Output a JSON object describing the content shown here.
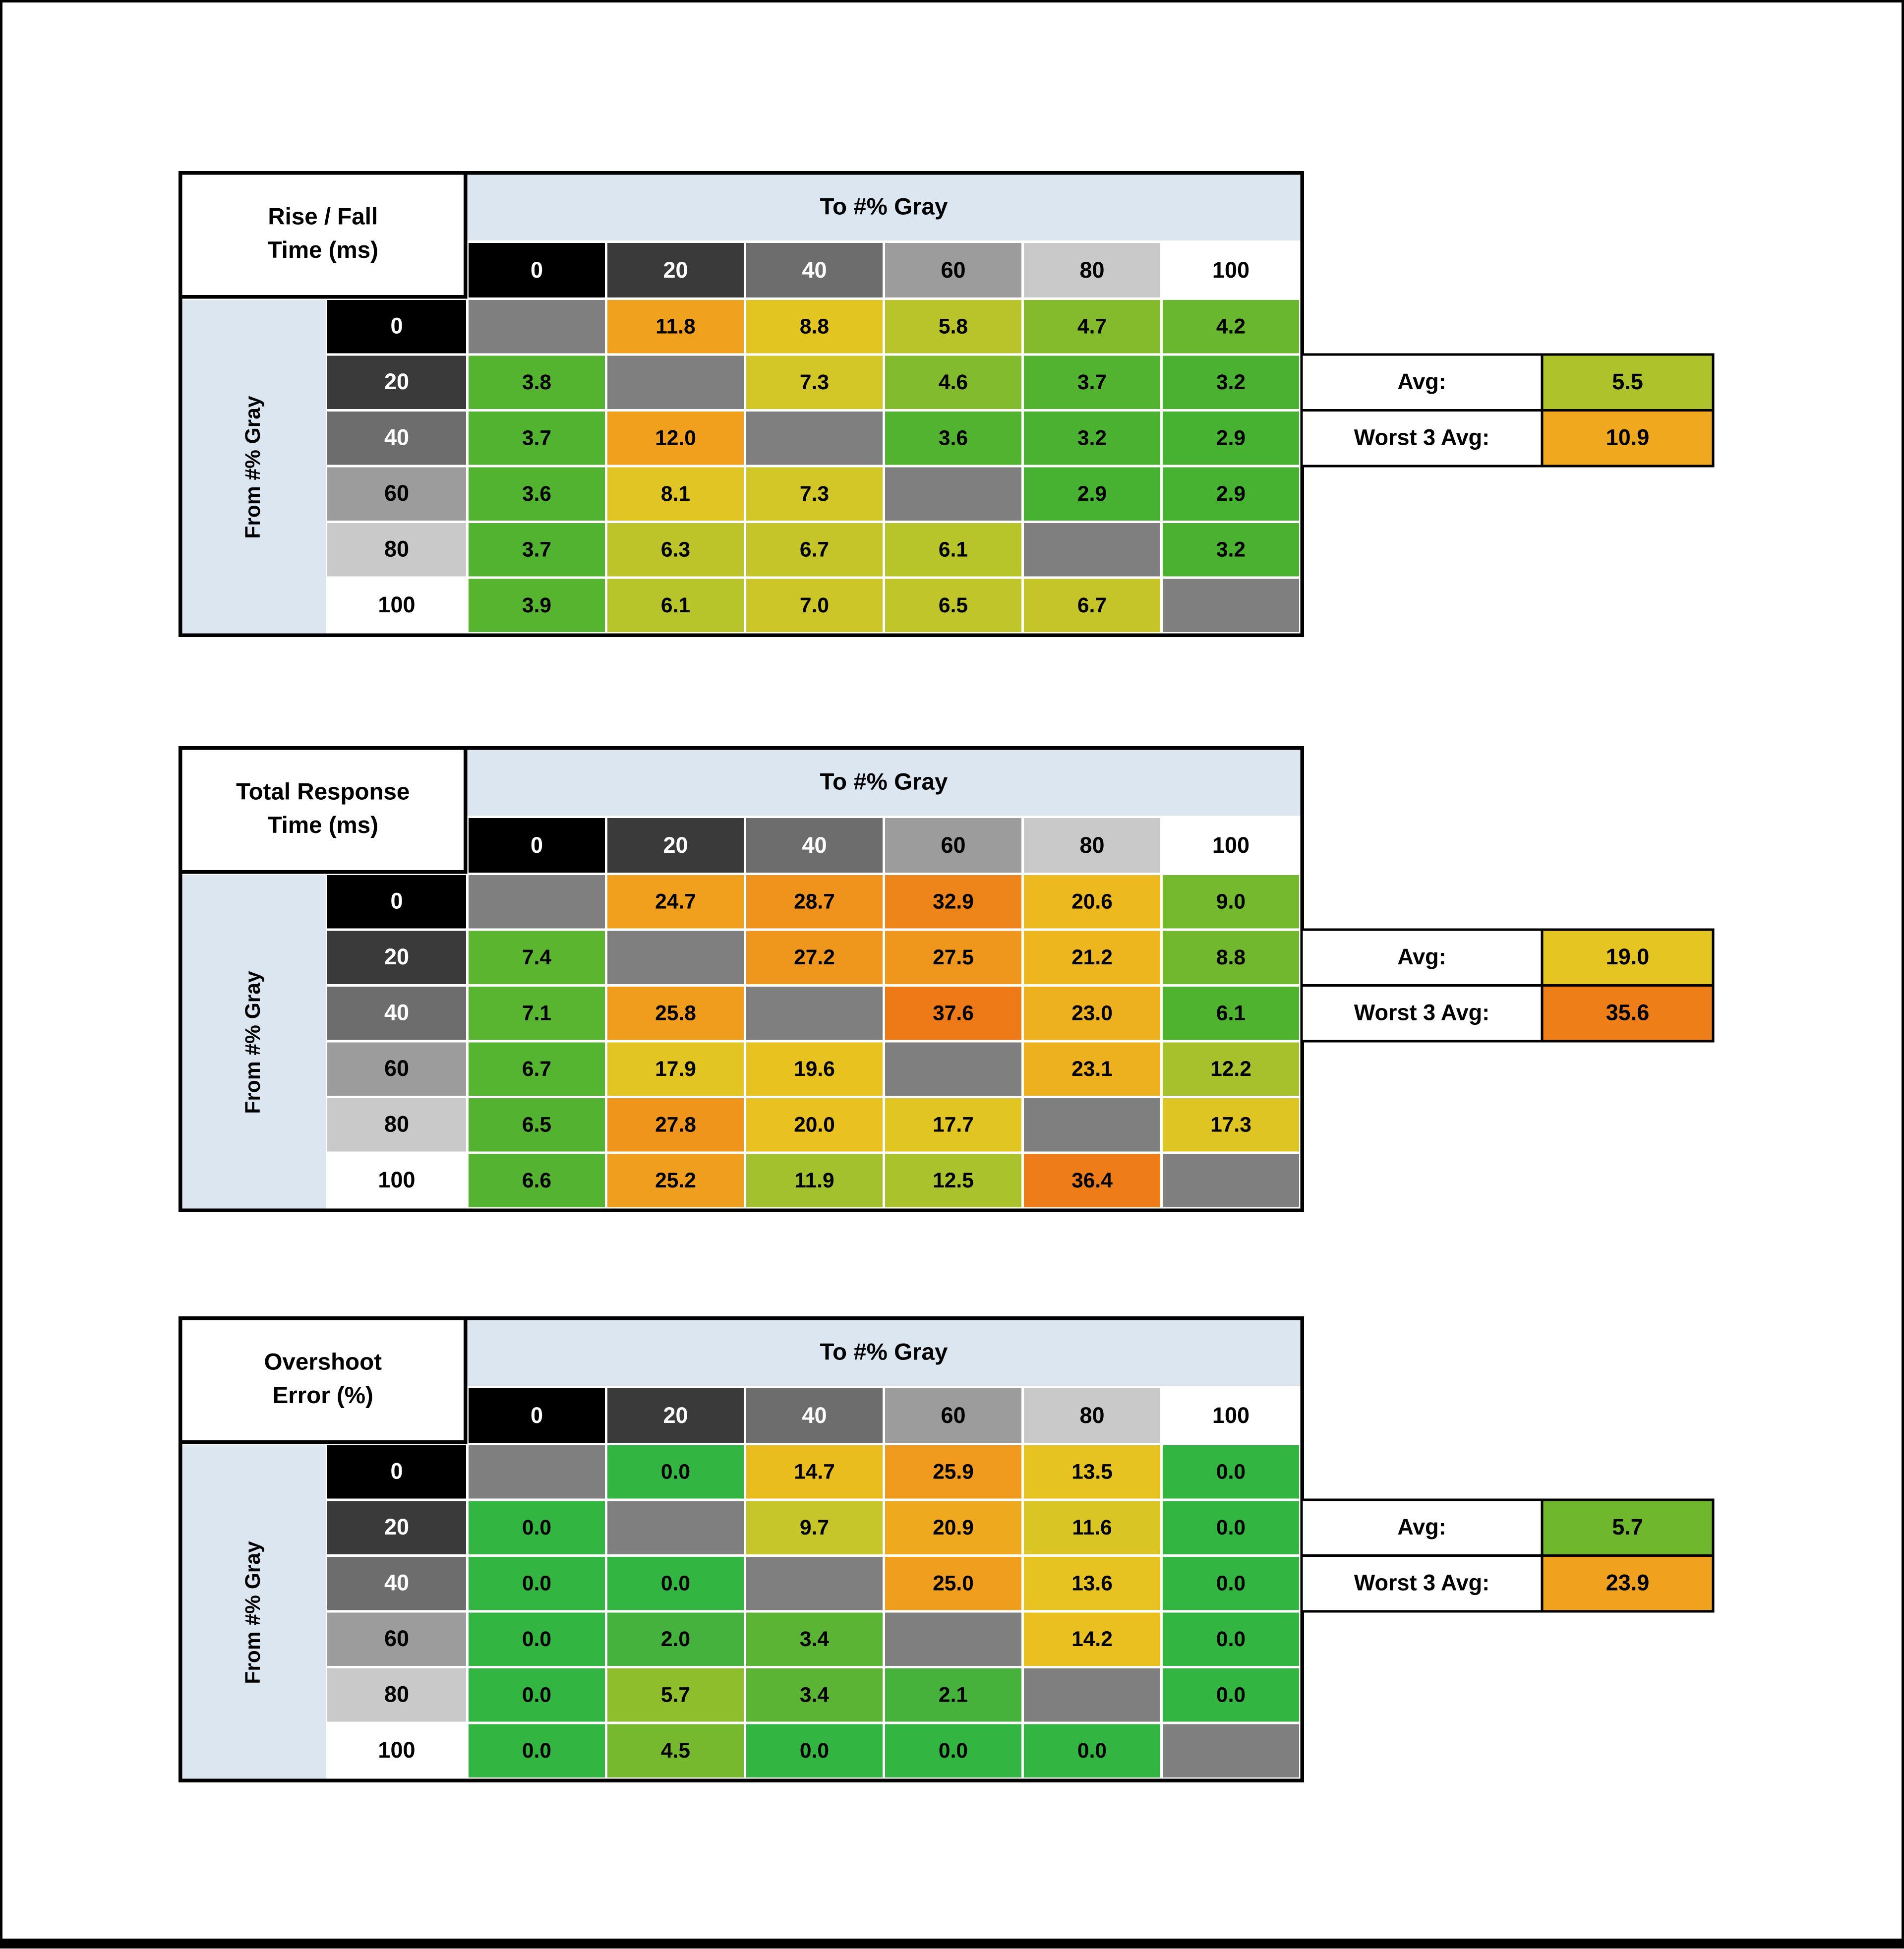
{
  "page": {
    "background": "#ffffff",
    "border_color": "#000000",
    "band_color": "#dce6f1",
    "diagonal_color": "#7f7f7f"
  },
  "ramp": {
    "colors": [
      "#000000",
      "#3a3a3a",
      "#6d6d6d",
      "#9c9c9c",
      "#c9c9c9",
      "#ffffff"
    ],
    "text_colors": [
      "#ffffff",
      "#ffffff",
      "#ffffff",
      "#000000",
      "#000000",
      "#000000"
    ]
  },
  "chart_data": [
    {
      "type": "heatmap",
      "title": "Rise / Fall Time (ms)",
      "xlabel": "To #% Gray",
      "ylabel": "From #% Gray",
      "x": [
        0,
        20,
        40,
        60,
        80,
        100
      ],
      "y": [
        0,
        20,
        40,
        60,
        80,
        100
      ],
      "values": [
        [
          null,
          11.8,
          8.8,
          5.8,
          4.7,
          4.2
        ],
        [
          3.8,
          null,
          7.3,
          4.6,
          3.7,
          3.2
        ],
        [
          3.7,
          12.0,
          null,
          3.6,
          3.2,
          2.9
        ],
        [
          3.6,
          8.1,
          7.3,
          null,
          2.9,
          2.9
        ],
        [
          3.7,
          6.3,
          6.7,
          6.1,
          null,
          3.2
        ],
        [
          3.9,
          6.1,
          7.0,
          6.5,
          6.7,
          null
        ]
      ],
      "avg": 5.5,
      "worst_3_avg": 10.9
    },
    {
      "type": "heatmap",
      "title": "Total Response Time (ms)",
      "xlabel": "To #% Gray",
      "ylabel": "From #% Gray",
      "x": [
        0,
        20,
        40,
        60,
        80,
        100
      ],
      "y": [
        0,
        20,
        40,
        60,
        80,
        100
      ],
      "values": [
        [
          null,
          24.7,
          28.7,
          32.9,
          20.6,
          9.0
        ],
        [
          7.4,
          null,
          27.2,
          27.5,
          21.2,
          8.8
        ],
        [
          7.1,
          25.8,
          null,
          37.6,
          23.0,
          6.1
        ],
        [
          6.7,
          17.9,
          19.6,
          null,
          23.1,
          12.2
        ],
        [
          6.5,
          27.8,
          20.0,
          17.7,
          null,
          17.3
        ],
        [
          6.6,
          25.2,
          11.9,
          12.5,
          36.4,
          null
        ]
      ],
      "avg": 19.0,
      "worst_3_avg": 35.6
    },
    {
      "type": "heatmap",
      "title": "Overshoot Error (%)",
      "xlabel": "To #% Gray",
      "ylabel": "From #% Gray",
      "x": [
        0,
        20,
        40,
        60,
        80,
        100
      ],
      "y": [
        0,
        20,
        40,
        60,
        80,
        100
      ],
      "values": [
        [
          null,
          0.0,
          14.7,
          25.9,
          13.5,
          0.0
        ],
        [
          0.0,
          null,
          9.7,
          20.9,
          11.6,
          0.0
        ],
        [
          0.0,
          0.0,
          null,
          25.0,
          13.6,
          0.0
        ],
        [
          0.0,
          2.0,
          3.4,
          null,
          14.2,
          0.0
        ],
        [
          0.0,
          5.7,
          3.4,
          2.1,
          null,
          0.0
        ],
        [
          0.0,
          4.5,
          0.0,
          0.0,
          0.0,
          null
        ]
      ],
      "avg": 5.7,
      "worst_3_avg": 23.9
    }
  ],
  "tables": [
    {
      "corner_line1": "Rise / Fall",
      "corner_line2": "Time (ms)",
      "col_group_label": "To #% Gray",
      "row_group_label": "From #% Gray",
      "col_headers": [
        "0",
        "20",
        "40",
        "60",
        "80",
        "100"
      ],
      "row_headers": [
        "0",
        "20",
        "40",
        "60",
        "80",
        "100"
      ],
      "cell_colors": [
        [
          null,
          "#f0a21e",
          "#e3c522",
          "#b9c42a",
          "#84bb2d",
          "#68b72f"
        ],
        [
          "#55b42f",
          null,
          "#d3c727",
          "#82bb2d",
          "#52b330",
          "#4bb231"
        ],
        [
          "#52b330",
          "#f0a01d",
          null,
          "#51b330",
          "#4bb231",
          "#47b132"
        ],
        [
          "#51b330",
          "#e0c524",
          "#d3c727",
          null,
          "#47b132",
          "#47b132"
        ],
        [
          "#52b330",
          "#bcc42a",
          "#c5c529",
          "#b7c42a",
          null,
          "#4bb231"
        ],
        [
          "#57b42f",
          "#b7c42a",
          "#cdc628",
          "#c0c529",
          "#c5c529",
          null
        ]
      ],
      "summary": {
        "avg_label": "Avg:",
        "worst_label": "Worst 3 Avg:",
        "avg_color": "#adc22b",
        "worst_color": "#f0a81f"
      }
    },
    {
      "corner_line1": "Total Response",
      "corner_line2": "Time (ms)",
      "col_group_label": "To #% Gray",
      "row_group_label": "From #% Gray",
      "col_headers": [
        "0",
        "20",
        "40",
        "60",
        "80",
        "100"
      ],
      "row_headers": [
        "0",
        "20",
        "40",
        "60",
        "80",
        "100"
      ],
      "cell_colors": [
        [
          null,
          "#f0a01d",
          "#ef931c",
          "#ee851a",
          "#ecb91e",
          "#74b92e"
        ],
        [
          "#5cb52f",
          null,
          "#ef971c",
          "#ef961c",
          "#eeb61e",
          "#71b82e"
        ],
        [
          "#59b42f",
          "#f09c1d",
          null,
          "#ee7a17",
          "#edb01e",
          "#4fb330"
        ],
        [
          "#55b430",
          "#e2c522",
          "#e8c320",
          null,
          "#edb01e",
          "#a6c12b"
        ],
        [
          "#53b330",
          "#ef951c",
          "#e9c120",
          "#e1c522",
          null,
          "#dfc523"
        ],
        [
          "#54b330",
          "#f09e1d",
          "#a3c12c",
          "#aac22b",
          "#ee7c18",
          null
        ]
      ],
      "summary": {
        "avg_label": "Avg:",
        "worst_label": "Worst 3 Avg:",
        "avg_color": "#e5c521",
        "worst_color": "#ee7e18"
      }
    },
    {
      "corner_line1": "Overshoot",
      "corner_line2": "Error (%)",
      "col_group_label": "To #% Gray",
      "row_group_label": "From #% Gray",
      "col_headers": [
        "0",
        "20",
        "40",
        "60",
        "80",
        "100"
      ],
      "row_headers": [
        "0",
        "20",
        "40",
        "60",
        "80",
        "100"
      ],
      "cell_colors": [
        [
          null,
          "#33b541",
          "#eabd1f",
          "#f09b1d",
          "#e6c321",
          "#33b541"
        ],
        [
          "#33b541",
          null,
          "#c6c529",
          "#efa91e",
          "#d9c625",
          "#33b541"
        ],
        [
          "#33b541",
          "#33b541",
          null,
          "#f09e1d",
          "#e6c321",
          "#33b541"
        ],
        [
          "#33b541",
          "#44b23c",
          "#5cb434",
          null,
          "#e9c020",
          "#33b541"
        ],
        [
          "#33b541",
          "#8fbe2c",
          "#5cb434",
          "#46b23b",
          null,
          "#33b541"
        ],
        [
          "#33b541",
          "#76b92e",
          "#33b541",
          "#33b541",
          "#33b541",
          null
        ]
      ],
      "summary": {
        "avg_label": "Avg:",
        "worst_label": "Worst 3 Avg:",
        "avg_color": "#6fb82e",
        "worst_color": "#f0a21e"
      }
    }
  ]
}
